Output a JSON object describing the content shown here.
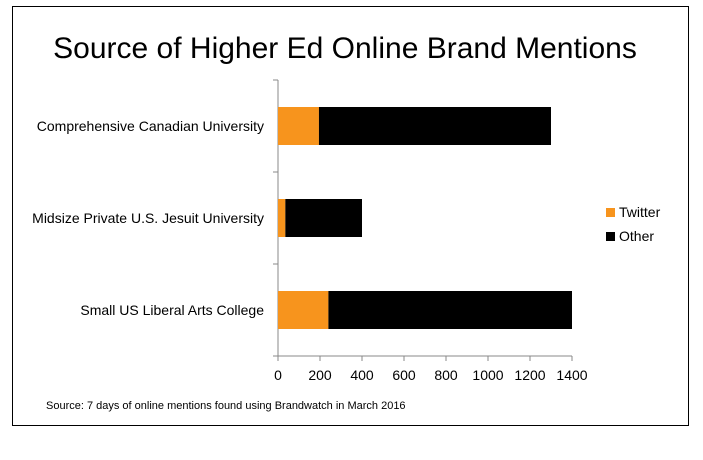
{
  "chart_data": {
    "type": "bar",
    "orientation": "horizontal",
    "stacked": true,
    "title": "Source of Higher Ed Online Brand Mentions",
    "categories": [
      "Comprehensive Canadian University",
      "Midsize Private U.S. Jesuit University",
      "Small US Liberal Arts College"
    ],
    "series": [
      {
        "name": "Twitter",
        "color": "#f7941d",
        "values": [
          195,
          35,
          240
        ]
      },
      {
        "name": "Other",
        "color": "#000000",
        "values": [
          1105,
          365,
          1160
        ]
      }
    ],
    "xlim": [
      0,
      1400
    ],
    "xticks": [
      "0",
      "200",
      "400",
      "600",
      "800",
      "1000",
      "1200",
      "1400"
    ],
    "grid": false,
    "legend_position": "right",
    "source_note": "Source: 7 days of online mentions found using Brandwatch in March 2016"
  }
}
